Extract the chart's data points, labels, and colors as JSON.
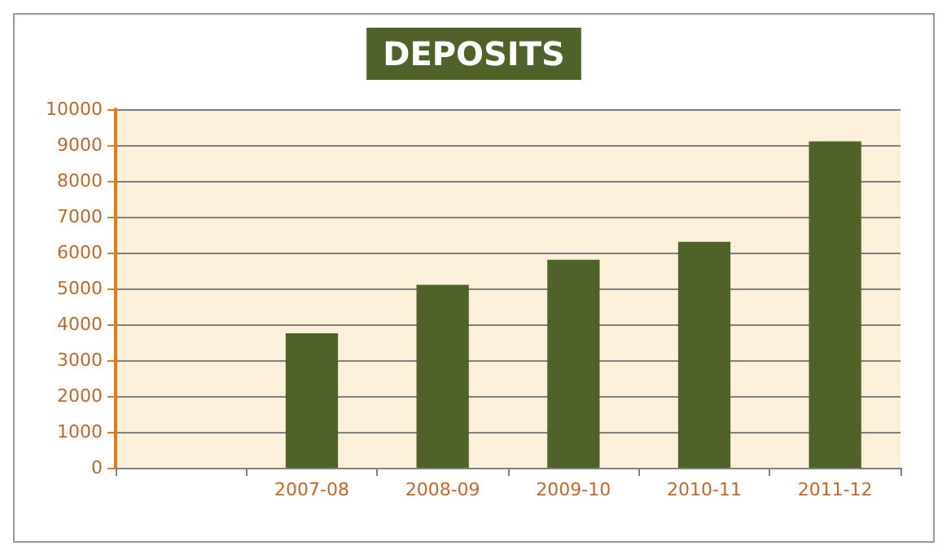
{
  "chart_data": {
    "type": "bar",
    "title": "DEPOSITS",
    "categories": [
      null,
      "2007-08",
      "2008-09",
      "2009-10",
      "2010-11",
      "2011-12"
    ],
    "values": [
      null,
      3750,
      5100,
      5800,
      6300,
      9100
    ],
    "color": "#4f6228",
    "ylim": [
      0,
      10000
    ],
    "yticks": [
      0,
      1000,
      2000,
      3000,
      4000,
      5000,
      6000,
      7000,
      8000,
      9000,
      10000
    ],
    "grid": "y"
  }
}
